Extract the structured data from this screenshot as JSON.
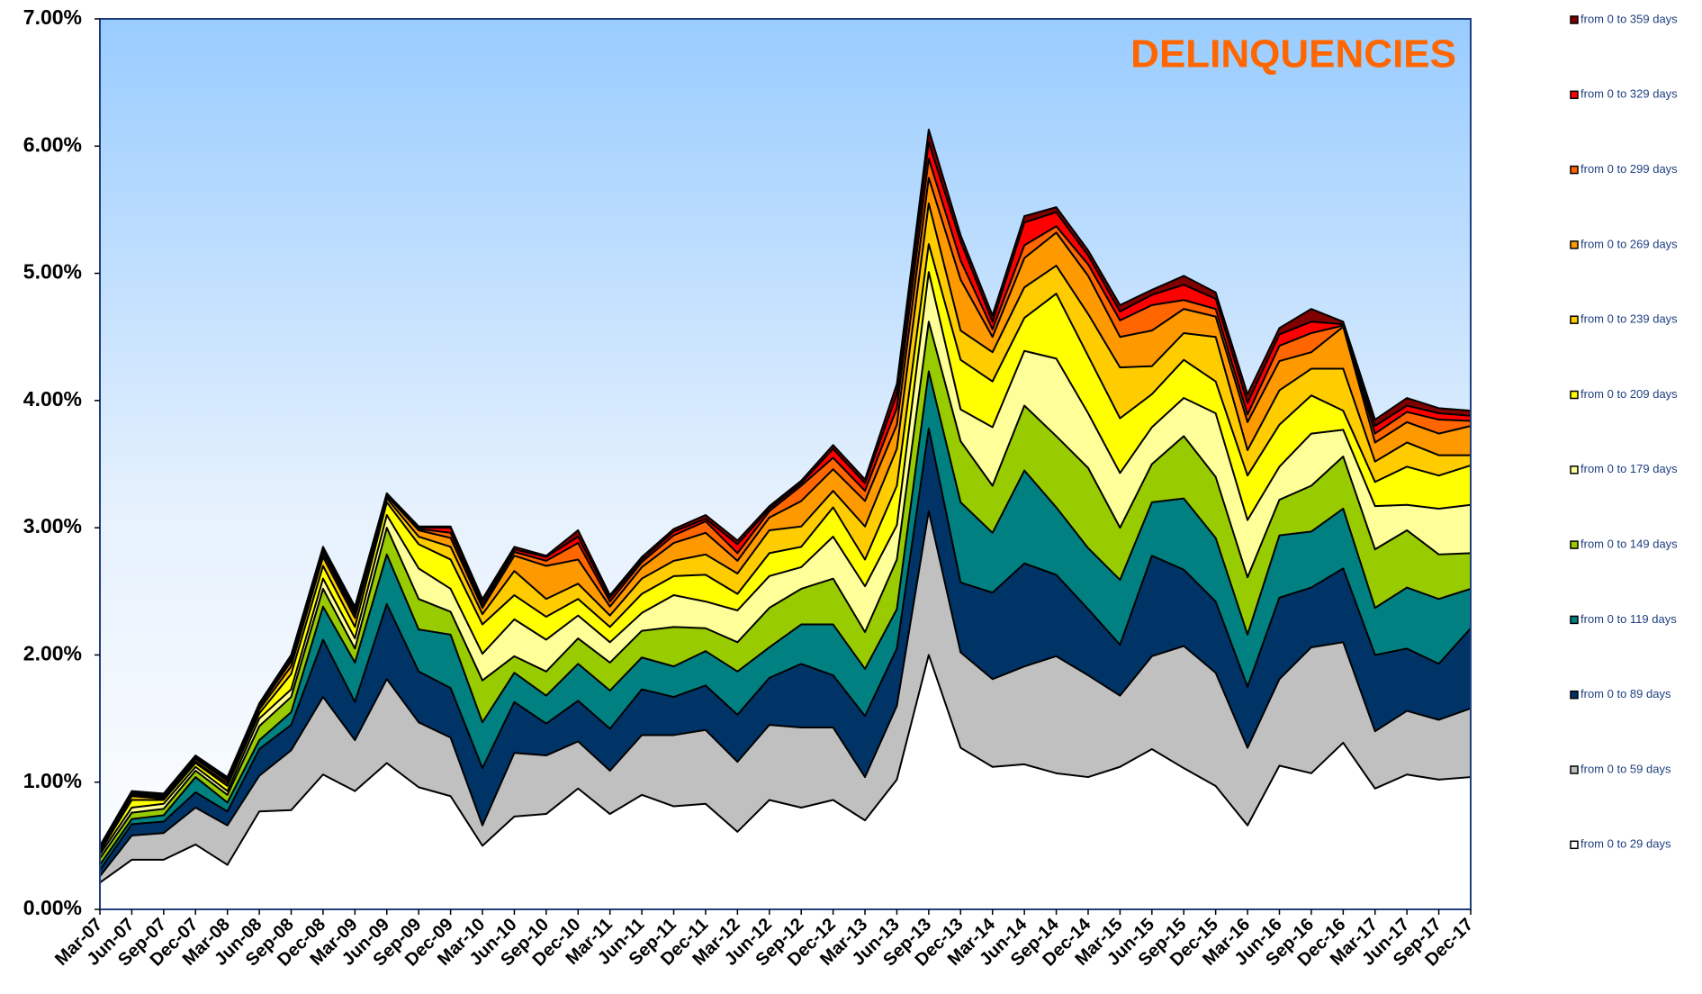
{
  "chart_data": {
    "type": "area",
    "title": "DELINQUENCIES",
    "categories": [
      "Mar-07",
      "Jun-07",
      "Sep-07",
      "Dec-07",
      "Mar-08",
      "Jun-08",
      "Sep-08",
      "Dec-08",
      "Mar-09",
      "Jun-09",
      "Sep-09",
      "Dec-09",
      "Mar-10",
      "Jun-10",
      "Sep-10",
      "Dec-10",
      "Mar-11",
      "Jun-11",
      "Sep-11",
      "Dec-11",
      "Mar-12",
      "Jun-12",
      "Sep-12",
      "Dec-12",
      "Mar-13",
      "Jun-13",
      "Sep-13",
      "Dec-13",
      "Mar-14",
      "Jun-14",
      "Sep-14",
      "Dec-14",
      "Mar-15",
      "Jun-15",
      "Sep-15",
      "Dec-15",
      "Mar-16",
      "Jun-16",
      "Sep-16",
      "Dec-16",
      "Mar-17",
      "Jun-17",
      "Sep-17",
      "Dec-17"
    ],
    "series": [
      {
        "name": "from 0 to 29 days",
        "color": "#ffffff",
        "values": [
          0.21,
          0.39,
          0.39,
          0.51,
          0.35,
          0.77,
          0.78,
          1.06,
          0.93,
          1.15,
          0.96,
          0.89,
          0.5,
          0.73,
          0.75,
          0.95,
          0.75,
          0.9,
          0.81,
          0.83,
          0.61,
          0.86,
          0.8,
          0.86,
          0.7,
          1.02,
          2.0,
          1.27,
          1.12,
          1.14,
          1.07,
          1.04,
          1.12,
          1.26,
          1.11,
          0.97,
          0.66,
          1.13,
          1.07,
          1.31,
          0.95,
          1.06,
          1.02,
          1.04
        ]
      },
      {
        "name": "from 0 to 59 days",
        "color": "#c0c0c0",
        "values": [
          0.26,
          0.58,
          0.6,
          0.8,
          0.66,
          1.05,
          1.25,
          1.67,
          1.33,
          1.81,
          1.47,
          1.35,
          0.66,
          1.23,
          1.21,
          1.32,
          1.09,
          1.37,
          1.37,
          1.41,
          1.16,
          1.45,
          1.43,
          1.43,
          1.04,
          1.6,
          3.13,
          2.02,
          1.81,
          1.91,
          1.99,
          1.84,
          1.68,
          1.99,
          2.07,
          1.86,
          1.27,
          1.81,
          2.06,
          2.1,
          1.4,
          1.56,
          1.49,
          1.58
        ]
      },
      {
        "name": "from 0 to  89 days",
        "color": "#003366",
        "values": [
          0.31,
          0.67,
          0.69,
          0.92,
          0.77,
          1.26,
          1.45,
          2.12,
          1.63,
          2.4,
          1.87,
          1.74,
          1.11,
          1.63,
          1.46,
          1.64,
          1.42,
          1.73,
          1.67,
          1.76,
          1.53,
          1.82,
          1.93,
          1.84,
          1.52,
          2.05,
          3.78,
          2.57,
          2.49,
          2.72,
          2.63,
          2.36,
          2.08,
          2.78,
          2.67,
          2.42,
          1.75,
          2.45,
          2.53,
          2.68,
          2.0,
          2.05,
          1.93,
          2.21
        ]
      },
      {
        "name": "from 0 to 119 days",
        "color": "#008080",
        "values": [
          0.35,
          0.71,
          0.74,
          1.04,
          0.84,
          1.33,
          1.55,
          2.38,
          1.94,
          2.79,
          2.2,
          2.16,
          1.47,
          1.86,
          1.68,
          1.93,
          1.72,
          1.98,
          1.91,
          2.03,
          1.87,
          2.06,
          2.24,
          2.24,
          1.89,
          2.36,
          4.23,
          3.2,
          2.96,
          3.45,
          3.16,
          2.84,
          2.59,
          3.2,
          3.23,
          2.92,
          2.16,
          2.94,
          2.97,
          3.15,
          2.37,
          2.53,
          2.44,
          2.52
        ]
      },
      {
        "name": "from 0 to 149 days",
        "color": "#99cc00",
        "values": [
          0.4,
          0.76,
          0.79,
          1.09,
          0.9,
          1.44,
          1.67,
          2.52,
          2.05,
          3.0,
          2.44,
          2.34,
          1.8,
          1.99,
          1.87,
          2.13,
          1.94,
          2.19,
          2.22,
          2.21,
          2.1,
          2.37,
          2.52,
          2.6,
          2.18,
          2.75,
          4.62,
          3.68,
          3.33,
          3.96,
          3.72,
          3.47,
          3.0,
          3.5,
          3.72,
          3.4,
          2.61,
          3.22,
          3.33,
          3.56,
          2.83,
          2.98,
          2.79,
          2.8
        ]
      },
      {
        "name": "from 0 to 179 days",
        "color": "#ffff99",
        "values": [
          0.43,
          0.8,
          0.83,
          1.12,
          0.93,
          1.5,
          1.73,
          2.6,
          2.13,
          3.1,
          2.68,
          2.52,
          2.01,
          2.28,
          2.12,
          2.31,
          2.1,
          2.33,
          2.47,
          2.42,
          2.35,
          2.62,
          2.69,
          2.93,
          2.54,
          3.02,
          5.01,
          3.93,
          3.79,
          4.39,
          4.33,
          3.9,
          3.43,
          3.79,
          4.02,
          3.9,
          3.06,
          3.48,
          3.74,
          3.77,
          3.17,
          3.18,
          3.15,
          3.18
        ]
      },
      {
        "name": "from 0 to 209 days",
        "color": "#ffff00",
        "values": [
          0.45,
          0.86,
          0.86,
          1.15,
          0.97,
          1.54,
          1.85,
          2.7,
          2.22,
          3.2,
          2.87,
          2.75,
          2.24,
          2.47,
          2.3,
          2.44,
          2.22,
          2.48,
          2.62,
          2.63,
          2.48,
          2.8,
          2.85,
          3.16,
          2.75,
          3.33,
          5.23,
          4.32,
          4.15,
          4.65,
          4.84,
          4.35,
          3.86,
          4.05,
          4.32,
          4.15,
          3.41,
          3.81,
          4.04,
          3.92,
          3.36,
          3.48,
          3.41,
          3.49
        ]
      },
      {
        "name": "from 0 to 239 days",
        "color": "#ffcc00",
        "values": [
          0.46,
          0.89,
          0.87,
          1.16,
          0.99,
          1.57,
          1.91,
          2.77,
          2.29,
          3.23,
          2.93,
          2.85,
          2.32,
          2.66,
          2.44,
          2.56,
          2.31,
          2.6,
          2.74,
          2.79,
          2.64,
          2.98,
          3.01,
          3.29,
          3.01,
          3.62,
          5.55,
          4.55,
          4.38,
          4.89,
          5.06,
          4.68,
          4.26,
          4.27,
          4.53,
          4.5,
          3.61,
          4.08,
          4.25,
          4.25,
          3.52,
          3.67,
          3.57,
          3.57
        ]
      },
      {
        "name": "from 0 to 269 days",
        "color": "#ff9900",
        "values": [
          0.47,
          0.9,
          0.88,
          1.18,
          1.01,
          1.59,
          1.95,
          2.8,
          2.32,
          3.25,
          2.98,
          2.92,
          2.37,
          2.78,
          2.7,
          2.75,
          2.38,
          2.69,
          2.88,
          2.96,
          2.74,
          3.08,
          3.21,
          3.46,
          3.21,
          3.81,
          5.75,
          4.95,
          4.5,
          5.12,
          5.32,
          4.98,
          4.5,
          4.55,
          4.72,
          4.66,
          3.83,
          4.31,
          4.38,
          4.58,
          3.67,
          3.83,
          3.74,
          3.8
        ]
      },
      {
        "name": "from 0 to 299 days",
        "color": "#ff6600",
        "values": [
          0.48,
          0.91,
          0.89,
          1.19,
          1.02,
          1.6,
          1.97,
          2.82,
          2.34,
          3.26,
          2.99,
          2.96,
          2.39,
          2.81,
          2.74,
          2.88,
          2.42,
          2.73,
          2.94,
          3.05,
          2.8,
          3.13,
          3.33,
          3.55,
          3.29,
          3.94,
          5.9,
          5.1,
          4.56,
          5.22,
          5.37,
          5.07,
          4.63,
          4.75,
          4.79,
          4.72,
          3.89,
          4.43,
          4.53,
          4.59,
          3.74,
          3.91,
          3.85,
          3.84
        ]
      },
      {
        "name": "from 0 to 329 days",
        "color": "#ff0000",
        "values": [
          0.49,
          0.92,
          0.9,
          1.2,
          1.03,
          1.61,
          1.99,
          2.83,
          2.36,
          3.27,
          3.0,
          3.0,
          2.42,
          2.83,
          2.77,
          2.93,
          2.45,
          2.75,
          2.97,
          3.07,
          2.87,
          3.15,
          3.35,
          3.62,
          3.35,
          4.05,
          6.03,
          5.25,
          4.62,
          5.4,
          5.48,
          5.14,
          4.7,
          4.83,
          4.91,
          4.8,
          3.98,
          4.52,
          4.62,
          4.6,
          3.8,
          3.96,
          3.9,
          3.88
        ]
      },
      {
        "name": "from 0 to 359 days",
        "color": "#800000",
        "values": [
          0.5,
          0.93,
          0.91,
          1.21,
          1.04,
          1.62,
          2.0,
          2.85,
          2.38,
          3.27,
          3.01,
          3.01,
          2.44,
          2.85,
          2.78,
          2.98,
          2.47,
          2.77,
          2.99,
          3.1,
          2.9,
          3.17,
          3.37,
          3.65,
          3.38,
          4.13,
          6.13,
          5.3,
          4.67,
          5.45,
          5.52,
          5.18,
          4.75,
          4.87,
          4.98,
          4.85,
          4.05,
          4.57,
          4.72,
          4.62,
          3.85,
          4.02,
          3.94,
          3.92
        ]
      }
    ],
    "ylim": [
      0,
      7
    ],
    "yticks": [
      {
        "value": 0,
        "label": "0.00%"
      },
      {
        "value": 1,
        "label": "1.00%"
      },
      {
        "value": 2,
        "label": "2.00%"
      },
      {
        "value": 3,
        "label": "3.00%"
      },
      {
        "value": 4,
        "label": "4.00%"
      },
      {
        "value": 5,
        "label": "5.00%"
      },
      {
        "value": 6,
        "label": "6.00%"
      },
      {
        "value": 7,
        "label": "7.00%"
      }
    ],
    "grid": false,
    "legend": "right"
  }
}
